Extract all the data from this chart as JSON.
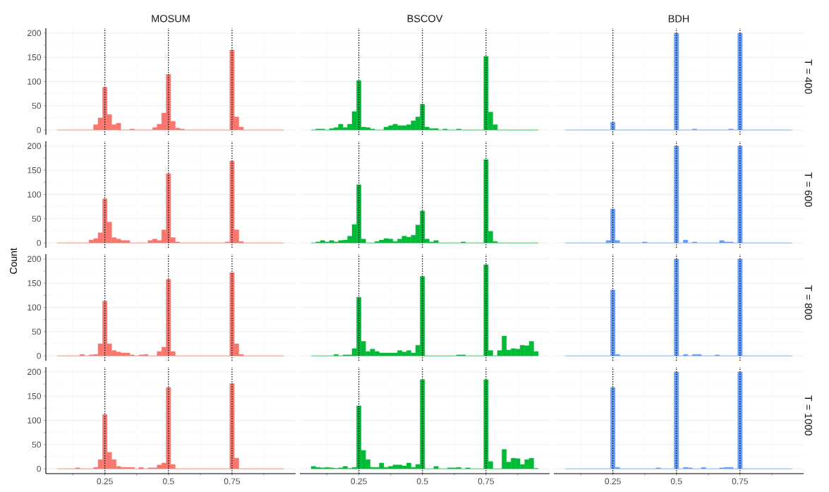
{
  "chart_data": [
    {
      "type": "histogram",
      "title": "MOSUM",
      "color": "#f8766d",
      "tick_labels": "y",
      "grid": true,
      "xlim": [
        0.018,
        1.0
      ],
      "ylim": [
        -10,
        210
      ],
      "xticks": [
        0.25,
        0.5,
        0.75
      ],
      "yticks": [
        0,
        50,
        100,
        150,
        200
      ],
      "ref_lines": [
        {
          "axis": "x",
          "value": 0.25,
          "color": "#000000",
          "line_style": "dotted"
        },
        {
          "axis": "x",
          "value": 0.5,
          "color": "#000000",
          "line_style": "dotted"
        },
        {
          "axis": "x",
          "value": 0.75,
          "color": "#000000",
          "line_style": "dotted"
        }
      ],
      "bins": [
        0.0625,
        0.0804,
        0.0982,
        0.1161,
        0.1339,
        0.1518,
        0.1696,
        0.1875,
        0.2054,
        0.2232,
        0.2411,
        0.2589,
        0.2768,
        0.2946,
        0.3125,
        0.3304,
        0.3482,
        0.3661,
        0.3839,
        0.4018,
        0.4196,
        0.4375,
        0.4554,
        0.4732,
        0.4911,
        0.5089,
        0.5268,
        0.5446,
        0.5625,
        0.5804,
        0.5982,
        0.6161,
        0.6339,
        0.6518,
        0.6696,
        0.6875,
        0.7054,
        0.7232,
        0.7411,
        0.7589,
        0.7768,
        0.7946,
        0.8125,
        0.8304,
        0.8482,
        0.8661,
        0.8839,
        0.9018,
        0.9196,
        0.9375,
        0.9554
      ],
      "values": [
        0,
        0,
        0,
        0,
        0,
        0,
        0,
        0,
        11,
        25,
        88,
        32,
        11,
        14,
        0,
        0,
        2,
        0,
        0,
        0,
        0,
        5,
        12,
        35,
        115,
        18,
        4,
        2,
        0,
        0,
        0,
        0,
        0,
        0,
        0,
        0,
        0,
        0,
        165,
        27,
        6,
        0,
        0,
        0,
        0,
        0,
        0,
        0,
        0,
        0
      ]
    },
    {
      "type": "histogram",
      "title": "BSCOV",
      "color": "#00ba38",
      "tick_labels": false,
      "grid": true,
      "xlim": [
        0.018,
        1.0
      ],
      "ylim": [
        -10,
        210
      ],
      "xticks": [
        0.25,
        0.5,
        0.75
      ],
      "yticks": [
        0,
        50,
        100,
        150,
        200
      ],
      "ref_lines": [
        {
          "axis": "x",
          "value": 0.25,
          "color": "#000000",
          "line_style": "dotted"
        },
        {
          "axis": "x",
          "value": 0.5,
          "color": "#000000",
          "line_style": "dotted"
        },
        {
          "axis": "x",
          "value": 0.75,
          "color": "#000000",
          "line_style": "dotted"
        }
      ],
      "bins": [
        0.0625,
        0.0804,
        0.0982,
        0.1161,
        0.1339,
        0.1518,
        0.1696,
        0.1875,
        0.2054,
        0.2232,
        0.2411,
        0.2589,
        0.2768,
        0.2946,
        0.3125,
        0.3304,
        0.3482,
        0.3661,
        0.3839,
        0.4018,
        0.4196,
        0.4375,
        0.4554,
        0.4732,
        0.4911,
        0.5089,
        0.5268,
        0.5446,
        0.5625,
        0.5804,
        0.5982,
        0.6161,
        0.6339,
        0.6518,
        0.6696,
        0.6875,
        0.7054,
        0.7232,
        0.7411,
        0.7589,
        0.7768,
        0.7946,
        0.8125,
        0.8304,
        0.8482,
        0.8661,
        0.8839,
        0.9018,
        0.9196,
        0.9375,
        0.9554
      ],
      "values": [
        0,
        2,
        2,
        0,
        3,
        5,
        12,
        5,
        12,
        38,
        102,
        6,
        5,
        2,
        0,
        0,
        6,
        9,
        12,
        9,
        9,
        11,
        19,
        27,
        53,
        6,
        3,
        3,
        0,
        2,
        0,
        0,
        2,
        0,
        0,
        0,
        0,
        0,
        152,
        37,
        11,
        0,
        0,
        0,
        0,
        0,
        0,
        0,
        0,
        0
      ]
    },
    {
      "type": "histogram",
      "title": "BDH",
      "y2label": "T = 400",
      "color": "#619cff",
      "tick_labels": false,
      "grid": true,
      "xlim": [
        0.018,
        1.0
      ],
      "ylim": [
        -10,
        210
      ],
      "xticks": [
        0.25,
        0.5,
        0.75
      ],
      "yticks": [
        0,
        50,
        100,
        150,
        200
      ],
      "ref_lines": [
        {
          "axis": "x",
          "value": 0.25,
          "color": "#000000",
          "line_style": "dotted"
        },
        {
          "axis": "x",
          "value": 0.5,
          "color": "#000000",
          "line_style": "dotted"
        },
        {
          "axis": "x",
          "value": 0.75,
          "color": "#000000",
          "line_style": "dotted"
        }
      ],
      "bins": [
        0.0625,
        0.0804,
        0.0982,
        0.1161,
        0.1339,
        0.1518,
        0.1696,
        0.1875,
        0.2054,
        0.2232,
        0.2411,
        0.2589,
        0.2768,
        0.2946,
        0.3125,
        0.3304,
        0.3482,
        0.3661,
        0.3839,
        0.4018,
        0.4196,
        0.4375,
        0.4554,
        0.4732,
        0.4911,
        0.5089,
        0.5268,
        0.5446,
        0.5625,
        0.5804,
        0.5982,
        0.6161,
        0.6339,
        0.6518,
        0.6696,
        0.6875,
        0.7054,
        0.7232,
        0.7411,
        0.7589,
        0.7768,
        0.7946,
        0.8125,
        0.8304,
        0.8482,
        0.8661,
        0.8839,
        0.9018,
        0.9196,
        0.9375,
        0.9554
      ],
      "values": [
        0,
        0,
        0,
        0,
        0,
        0,
        0,
        0,
        0,
        0,
        16,
        0,
        0,
        0,
        0,
        0,
        0,
        0,
        0,
        0,
        0,
        0,
        0,
        0,
        200,
        0,
        0,
        0,
        2,
        0,
        0,
        0,
        0,
        0,
        0,
        0,
        2,
        0,
        200,
        0,
        0,
        0,
        0,
        0,
        0,
        0,
        0,
        0,
        0,
        0
      ]
    },
    {
      "type": "histogram",
      "ylabel": "Count",
      "color": "#f8766d",
      "tick_labels": "y",
      "grid": true,
      "xlim": [
        0.018,
        1.0
      ],
      "ylim": [
        -10,
        210
      ],
      "xticks": [
        0.25,
        0.5,
        0.75
      ],
      "yticks": [
        0,
        50,
        100,
        150,
        200
      ],
      "ref_lines": [
        {
          "axis": "x",
          "value": 0.25,
          "color": "#000000",
          "line_style": "dotted"
        },
        {
          "axis": "x",
          "value": 0.5,
          "color": "#000000",
          "line_style": "dotted"
        },
        {
          "axis": "x",
          "value": 0.75,
          "color": "#000000",
          "line_style": "dotted"
        }
      ],
      "bins": [
        0.0625,
        0.0804,
        0.0982,
        0.1161,
        0.1339,
        0.1518,
        0.1696,
        0.1875,
        0.2054,
        0.2232,
        0.2411,
        0.2589,
        0.2768,
        0.2946,
        0.3125,
        0.3304,
        0.3482,
        0.3661,
        0.3839,
        0.4018,
        0.4196,
        0.4375,
        0.4554,
        0.4732,
        0.4911,
        0.5089,
        0.5268,
        0.5446,
        0.5625,
        0.5804,
        0.5982,
        0.6161,
        0.6339,
        0.6518,
        0.6696,
        0.6875,
        0.7054,
        0.7232,
        0.7411,
        0.7589,
        0.7768,
        0.7946,
        0.8125,
        0.8304,
        0.8482,
        0.8661,
        0.8839,
        0.9018,
        0.9196,
        0.9375,
        0.9554
      ],
      "values": [
        0,
        0,
        0,
        0,
        0,
        0,
        0,
        6,
        9,
        21,
        91,
        43,
        11,
        8,
        5,
        5,
        0,
        0,
        0,
        0,
        5,
        8,
        5,
        27,
        143,
        11,
        2,
        0,
        0,
        0,
        0,
        0,
        0,
        0,
        0,
        0,
        0,
        2,
        169,
        27,
        3,
        0,
        0,
        0,
        0,
        0,
        0,
        0,
        0,
        0
      ]
    },
    {
      "type": "histogram",
      "color": "#00ba38",
      "tick_labels": false,
      "grid": true,
      "xlim": [
        0.018,
        1.0
      ],
      "ylim": [
        -10,
        210
      ],
      "xticks": [
        0.25,
        0.5,
        0.75
      ],
      "yticks": [
        0,
        50,
        100,
        150,
        200
      ],
      "ref_lines": [
        {
          "axis": "x",
          "value": 0.25,
          "color": "#000000",
          "line_style": "dotted"
        },
        {
          "axis": "x",
          "value": 0.5,
          "color": "#000000",
          "line_style": "dotted"
        },
        {
          "axis": "x",
          "value": 0.75,
          "color": "#000000",
          "line_style": "dotted"
        }
      ],
      "bins": [
        0.0625,
        0.0804,
        0.0982,
        0.1161,
        0.1339,
        0.1518,
        0.1696,
        0.1875,
        0.2054,
        0.2232,
        0.2411,
        0.2589,
        0.2768,
        0.2946,
        0.3125,
        0.3304,
        0.3482,
        0.3661,
        0.3839,
        0.4018,
        0.4196,
        0.4375,
        0.4554,
        0.4732,
        0.4911,
        0.5089,
        0.5268,
        0.5446,
        0.5625,
        0.5804,
        0.5982,
        0.6161,
        0.6339,
        0.6518,
        0.6696,
        0.6875,
        0.7054,
        0.7232,
        0.7411,
        0.7589,
        0.7768,
        0.7946,
        0.8125,
        0.8304,
        0.8482,
        0.8661,
        0.8839,
        0.9018,
        0.9196,
        0.9375,
        0.9554
      ],
      "values": [
        0,
        2,
        5,
        2,
        5,
        2,
        5,
        6,
        14,
        38,
        120,
        8,
        0,
        0,
        3,
        6,
        9,
        8,
        3,
        8,
        14,
        12,
        16,
        37,
        66,
        8,
        2,
        5,
        0,
        0,
        0,
        0,
        0,
        2,
        0,
        0,
        0,
        0,
        172,
        24,
        3,
        0,
        0,
        0,
        0,
        0,
        0,
        0,
        0,
        0
      ]
    },
    {
      "type": "histogram",
      "y2label": "T = 600",
      "color": "#619cff",
      "tick_labels": false,
      "grid": true,
      "xlim": [
        0.018,
        1.0
      ],
      "ylim": [
        -10,
        210
      ],
      "xticks": [
        0.25,
        0.5,
        0.75
      ],
      "yticks": [
        0,
        50,
        100,
        150,
        200
      ],
      "ref_lines": [
        {
          "axis": "x",
          "value": 0.25,
          "color": "#000000",
          "line_style": "dotted"
        },
        {
          "axis": "x",
          "value": 0.5,
          "color": "#000000",
          "line_style": "dotted"
        },
        {
          "axis": "x",
          "value": 0.75,
          "color": "#000000",
          "line_style": "dotted"
        }
      ],
      "bins": [
        0.0625,
        0.0804,
        0.0982,
        0.1161,
        0.1339,
        0.1518,
        0.1696,
        0.1875,
        0.2054,
        0.2232,
        0.2411,
        0.2589,
        0.2768,
        0.2946,
        0.3125,
        0.3304,
        0.3482,
        0.3661,
        0.3839,
        0.4018,
        0.4196,
        0.4375,
        0.4554,
        0.4732,
        0.4911,
        0.5089,
        0.5268,
        0.5446,
        0.5625,
        0.5804,
        0.5982,
        0.6161,
        0.6339,
        0.6518,
        0.6696,
        0.6875,
        0.7054,
        0.7232,
        0.7411,
        0.7589,
        0.7768,
        0.7946,
        0.8125,
        0.8304,
        0.8482,
        0.8661,
        0.8839,
        0.9018,
        0.9196,
        0.9375,
        0.9554
      ],
      "values": [
        0,
        0,
        0,
        0,
        0,
        0,
        0,
        0,
        0,
        5,
        70,
        5,
        0,
        0,
        0,
        0,
        0,
        2,
        0,
        0,
        0,
        0,
        0,
        0,
        200,
        0,
        6,
        0,
        2,
        0,
        0,
        0,
        0,
        0,
        5,
        2,
        2,
        0,
        200,
        0,
        0,
        0,
        0,
        0,
        0,
        0,
        0,
        0,
        0,
        0
      ]
    },
    {
      "type": "histogram",
      "color": "#f8766d",
      "tick_labels": "y",
      "grid": true,
      "xlim": [
        0.018,
        1.0
      ],
      "ylim": [
        -10,
        210
      ],
      "xticks": [
        0.25,
        0.5,
        0.75
      ],
      "yticks": [
        0,
        50,
        100,
        150,
        200
      ],
      "ref_lines": [
        {
          "axis": "x",
          "value": 0.25,
          "color": "#000000",
          "line_style": "dotted"
        },
        {
          "axis": "x",
          "value": 0.5,
          "color": "#000000",
          "line_style": "dotted"
        },
        {
          "axis": "x",
          "value": 0.75,
          "color": "#000000",
          "line_style": "dotted"
        }
      ],
      "bins": [
        0.0625,
        0.0804,
        0.0982,
        0.1161,
        0.1339,
        0.1518,
        0.1696,
        0.1875,
        0.2054,
        0.2232,
        0.2411,
        0.2589,
        0.2768,
        0.2946,
        0.3125,
        0.3304,
        0.3482,
        0.3661,
        0.3839,
        0.4018,
        0.4196,
        0.4375,
        0.4554,
        0.4732,
        0.4911,
        0.5089,
        0.5268,
        0.5446,
        0.5625,
        0.5804,
        0.5982,
        0.6161,
        0.6339,
        0.6518,
        0.6696,
        0.6875,
        0.7054,
        0.7232,
        0.7411,
        0.7589,
        0.7768,
        0.7946,
        0.8125,
        0.8304,
        0.8482,
        0.8661,
        0.8839,
        0.9018,
        0.9196,
        0.9375,
        0.9554
      ],
      "values": [
        0,
        0,
        0,
        0,
        0,
        3,
        0,
        2,
        3,
        25,
        113,
        25,
        11,
        8,
        6,
        6,
        2,
        0,
        2,
        3,
        0,
        0,
        9,
        18,
        158,
        9,
        0,
        0,
        0,
        0,
        0,
        0,
        0,
        0,
        0,
        0,
        0,
        0,
        172,
        25,
        3,
        0,
        0,
        0,
        0,
        0,
        0,
        0,
        0,
        0
      ]
    },
    {
      "type": "histogram",
      "color": "#00ba38",
      "tick_labels": false,
      "grid": true,
      "xlim": [
        0.018,
        1.0
      ],
      "ylim": [
        -10,
        210
      ],
      "xticks": [
        0.25,
        0.5,
        0.75
      ],
      "yticks": [
        0,
        50,
        100,
        150,
        200
      ],
      "ref_lines": [
        {
          "axis": "x",
          "value": 0.25,
          "color": "#000000",
          "line_style": "dotted"
        },
        {
          "axis": "x",
          "value": 0.5,
          "color": "#000000",
          "line_style": "dotted"
        },
        {
          "axis": "x",
          "value": 0.75,
          "color": "#000000",
          "line_style": "dotted"
        }
      ],
      "bins": [
        0.0625,
        0.0804,
        0.0982,
        0.1161,
        0.1339,
        0.1518,
        0.1696,
        0.1875,
        0.2054,
        0.2232,
        0.2411,
        0.2589,
        0.2768,
        0.2946,
        0.3125,
        0.3304,
        0.3482,
        0.3661,
        0.3839,
        0.4018,
        0.4196,
        0.4375,
        0.4554,
        0.4732,
        0.4911,
        0.5089,
        0.5268,
        0.5446,
        0.5625,
        0.5804,
        0.5982,
        0.6161,
        0.6339,
        0.6518,
        0.6696,
        0.6875,
        0.7054,
        0.7232,
        0.7411,
        0.7589,
        0.7768,
        0.7946,
        0.8125,
        0.8304,
        0.8482,
        0.8661,
        0.8839,
        0.9018,
        0.9196,
        0.9375,
        0.9554
      ],
      "values": [
        0,
        0,
        0,
        0,
        0,
        3,
        0,
        2,
        2,
        15,
        121,
        30,
        9,
        14,
        9,
        6,
        6,
        6,
        6,
        11,
        8,
        11,
        6,
        22,
        164,
        0,
        0,
        0,
        0,
        0,
        0,
        0,
        2,
        2,
        0,
        0,
        0,
        0,
        188,
        11,
        0,
        11,
        41,
        12,
        15,
        14,
        22,
        21,
        30,
        9
      ]
    },
    {
      "type": "histogram",
      "y2label": "T = 800",
      "color": "#619cff",
      "tick_labels": false,
      "grid": true,
      "xlim": [
        0.018,
        1.0
      ],
      "ylim": [
        -10,
        210
      ],
      "xticks": [
        0.25,
        0.5,
        0.75
      ],
      "yticks": [
        0,
        50,
        100,
        150,
        200
      ],
      "ref_lines": [
        {
          "axis": "x",
          "value": 0.25,
          "color": "#000000",
          "line_style": "dotted"
        },
        {
          "axis": "x",
          "value": 0.5,
          "color": "#000000",
          "line_style": "dotted"
        },
        {
          "axis": "x",
          "value": 0.75,
          "color": "#000000",
          "line_style": "dotted"
        }
      ],
      "bins": [
        0.0625,
        0.0804,
        0.0982,
        0.1161,
        0.1339,
        0.1518,
        0.1696,
        0.1875,
        0.2054,
        0.2232,
        0.2411,
        0.2589,
        0.2768,
        0.2946,
        0.3125,
        0.3304,
        0.3482,
        0.3661,
        0.3839,
        0.4018,
        0.4196,
        0.4375,
        0.4554,
        0.4732,
        0.4911,
        0.5089,
        0.5268,
        0.5446,
        0.5625,
        0.5804,
        0.5982,
        0.6161,
        0.6339,
        0.6518,
        0.6696,
        0.6875,
        0.7054,
        0.7232,
        0.7411,
        0.7589,
        0.7768,
        0.7946,
        0.8125,
        0.8304,
        0.8482,
        0.8661,
        0.8839,
        0.9018,
        0.9196,
        0.9375,
        0.9554
      ],
      "values": [
        0,
        0,
        0,
        0,
        0,
        0,
        0,
        0,
        0,
        0,
        136,
        3,
        0,
        0,
        0,
        0,
        0,
        0,
        0,
        0,
        0,
        0,
        0,
        0,
        200,
        0,
        3,
        0,
        3,
        3,
        0,
        0,
        0,
        2,
        0,
        0,
        0,
        0,
        200,
        0,
        0,
        0,
        0,
        0,
        0,
        0,
        0,
        0,
        0,
        0
      ]
    },
    {
      "type": "histogram",
      "color": "#f8766d",
      "grid": true,
      "xlim": [
        0.018,
        1.0
      ],
      "ylim": [
        -10,
        210
      ],
      "xticks": [
        0.25,
        0.5,
        0.75
      ],
      "yticks": [
        0,
        50,
        100,
        150,
        200
      ],
      "ref_lines": [
        {
          "axis": "x",
          "value": 0.25,
          "color": "#000000",
          "line_style": "dotted"
        },
        {
          "axis": "x",
          "value": 0.5,
          "color": "#000000",
          "line_style": "dotted"
        },
        {
          "axis": "x",
          "value": 0.75,
          "color": "#000000",
          "line_style": "dotted"
        }
      ],
      "bins": [
        0.0625,
        0.0804,
        0.0982,
        0.1161,
        0.1339,
        0.1518,
        0.1696,
        0.1875,
        0.2054,
        0.2232,
        0.2411,
        0.2589,
        0.2768,
        0.2946,
        0.3125,
        0.3304,
        0.3482,
        0.3661,
        0.3839,
        0.4018,
        0.4196,
        0.4375,
        0.4554,
        0.4732,
        0.4911,
        0.5089,
        0.5268,
        0.5446,
        0.5625,
        0.5804,
        0.5982,
        0.6161,
        0.6339,
        0.6518,
        0.6696,
        0.6875,
        0.7054,
        0.7232,
        0.7411,
        0.7589,
        0.7768,
        0.7946,
        0.8125,
        0.8304,
        0.8482,
        0.8661,
        0.8839,
        0.9018,
        0.9196,
        0.9375,
        0.9554
      ],
      "values": [
        0,
        0,
        0,
        0,
        2,
        0,
        0,
        0,
        3,
        19,
        112,
        34,
        19,
        5,
        3,
        3,
        3,
        0,
        3,
        0,
        2,
        2,
        8,
        12,
        168,
        9,
        0,
        0,
        0,
        0,
        0,
        0,
        0,
        0,
        0,
        0,
        0,
        0,
        176,
        22,
        0,
        0,
        0,
        0,
        0,
        0,
        0,
        0,
        0,
        0
      ]
    },
    {
      "type": "histogram",
      "color": "#00ba38",
      "tick_labels": "x",
      "grid": true,
      "xlim": [
        0.018,
        1.0
      ],
      "ylim": [
        -10,
        210
      ],
      "xticks": [
        0.25,
        0.5,
        0.75
      ],
      "yticks": [
        0,
        50,
        100,
        150,
        200
      ],
      "ref_lines": [
        {
          "axis": "x",
          "value": 0.25,
          "color": "#000000",
          "line_style": "dotted"
        },
        {
          "axis": "x",
          "value": 0.5,
          "color": "#000000",
          "line_style": "dotted"
        },
        {
          "axis": "x",
          "value": 0.75,
          "color": "#000000",
          "line_style": "dotted"
        }
      ],
      "bins": [
        0.0625,
        0.0804,
        0.0982,
        0.1161,
        0.1339,
        0.1518,
        0.1696,
        0.1875,
        0.2054,
        0.2232,
        0.2411,
        0.2589,
        0.2768,
        0.2946,
        0.3125,
        0.3304,
        0.3482,
        0.3661,
        0.3839,
        0.4018,
        0.4196,
        0.4375,
        0.4554,
        0.4732,
        0.4911,
        0.5089,
        0.5268,
        0.5446,
        0.5625,
        0.5804,
        0.5982,
        0.6161,
        0.6339,
        0.6518,
        0.6696,
        0.6875,
        0.7054,
        0.7232,
        0.7411,
        0.7589,
        0.7768,
        0.7946,
        0.8125,
        0.8304,
        0.8482,
        0.8661,
        0.8839,
        0.9018,
        0.9196,
        0.9375,
        0.9554
      ],
      "values": [
        5,
        3,
        2,
        3,
        2,
        1,
        2,
        5,
        1,
        3,
        130,
        38,
        19,
        3,
        3,
        12,
        3,
        5,
        8,
        8,
        6,
        12,
        3,
        9,
        184,
        0,
        0,
        5,
        0,
        0,
        2,
        2,
        3,
        0,
        2,
        0,
        0,
        0,
        184,
        15,
        0,
        0,
        40,
        14,
        22,
        21,
        9,
        19,
        22,
        1
      ]
    },
    {
      "type": "histogram",
      "y2label": "T = 1000",
      "color": "#619cff",
      "tick_labels": "x",
      "grid": true,
      "xlim": [
        0.018,
        1.0
      ],
      "ylim": [
        -10,
        210
      ],
      "xticks": [
        0.25,
        0.5,
        0.75
      ],
      "yticks": [
        0,
        50,
        100,
        150,
        200
      ],
      "ref_lines": [
        {
          "axis": "x",
          "value": 0.25,
          "color": "#000000",
          "line_style": "dotted"
        },
        {
          "axis": "x",
          "value": 0.5,
          "color": "#000000",
          "line_style": "dotted"
        },
        {
          "axis": "x",
          "value": 0.75,
          "color": "#000000",
          "line_style": "dotted"
        }
      ],
      "bins": [
        0.0625,
        0.0804,
        0.0982,
        0.1161,
        0.1339,
        0.1518,
        0.1696,
        0.1875,
        0.2054,
        0.2232,
        0.2411,
        0.2589,
        0.2768,
        0.2946,
        0.3125,
        0.3304,
        0.3482,
        0.3661,
        0.3839,
        0.4018,
        0.4196,
        0.4375,
        0.4554,
        0.4732,
        0.4911,
        0.5089,
        0.5268,
        0.5446,
        0.5625,
        0.5804,
        0.5982,
        0.6161,
        0.6339,
        0.6518,
        0.6696,
        0.6875,
        0.7054,
        0.7232,
        0.7411,
        0.7589,
        0.7768,
        0.7946,
        0.8125,
        0.8304,
        0.8482,
        0.8661,
        0.8839,
        0.9018,
        0.9196,
        0.9375,
        0.9554
      ],
      "values": [
        0,
        0,
        0,
        0,
        0,
        0,
        0,
        0,
        0,
        0,
        168,
        3,
        0,
        0,
        0,
        0,
        0,
        0,
        0,
        0,
        2,
        0,
        0,
        0,
        200,
        0,
        3,
        2,
        0,
        0,
        3,
        0,
        0,
        0,
        2,
        3,
        3,
        0,
        200,
        0,
        0,
        0,
        0,
        0,
        0,
        0,
        0,
        0,
        0,
        0
      ]
    }
  ]
}
